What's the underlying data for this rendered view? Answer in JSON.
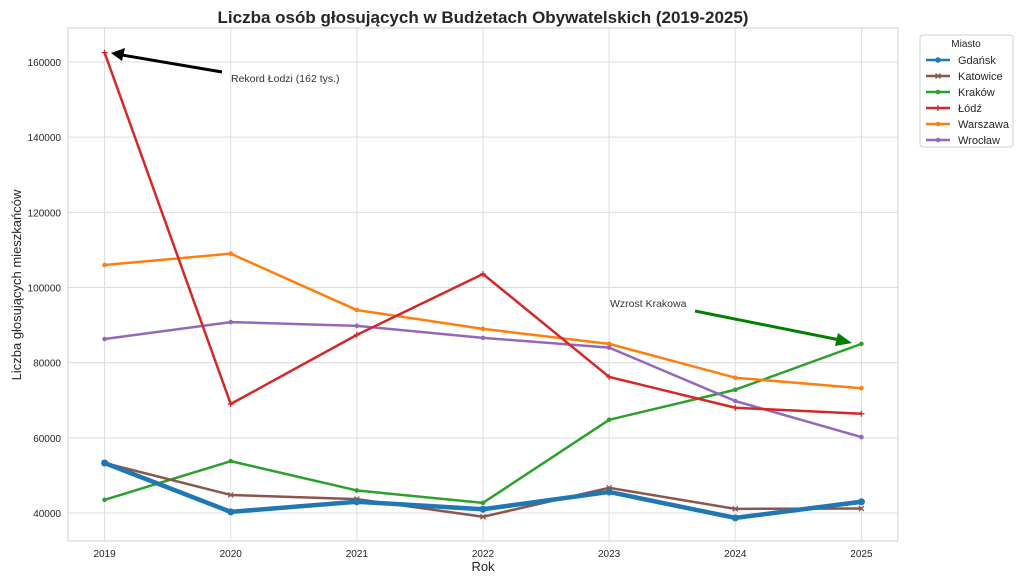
{
  "chart_data": {
    "type": "line",
    "title": "Liczba osób głosujących w Budżetach Obywatelskich (2019-2025)",
    "xlabel": "Rok",
    "ylabel": "Liczba głosujących mieszkańców",
    "x": [
      2019,
      2020,
      2021,
      2022,
      2023,
      2024,
      2025
    ],
    "x_tick_labels": [
      "2019",
      "2020",
      "2021",
      "2022",
      "2023",
      "2024",
      "2025"
    ],
    "y_ticks": [
      40000,
      60000,
      80000,
      100000,
      120000,
      140000,
      160000
    ],
    "y_tick_labels": [
      "40000",
      "60000",
      "80000",
      "100000",
      "120000",
      "140000",
      "160000"
    ],
    "xlim": [
      2018.71,
      2025.29
    ],
    "ylim": [
      32550,
      169050
    ],
    "grid": true,
    "legend": {
      "title": "Miasto",
      "placement": "outside-top-right"
    },
    "series": [
      {
        "name": "Gdańsk",
        "color": "#1f77b4",
        "marker": "circle",
        "values": [
          53300,
          40300,
          43000,
          41000,
          45600,
          38700,
          43000
        ]
      },
      {
        "name": "Katowice",
        "color": "#8c564b",
        "marker": "x",
        "values": [
          53300,
          44800,
          43700,
          39000,
          46700,
          41100,
          41200
        ]
      },
      {
        "name": "Kraków",
        "color": "#2ca02c",
        "marker": "dot",
        "values": [
          43500,
          53800,
          46000,
          42700,
          64800,
          72800,
          85000
        ]
      },
      {
        "name": "Łódź",
        "color": "#d62728",
        "marker": "plus",
        "values": [
          162500,
          69000,
          87400,
          103600,
          76200,
          68000,
          66400
        ]
      },
      {
        "name": "Warszawa",
        "color": "#ff7f0e",
        "marker": "dot",
        "values": [
          106000,
          109000,
          94000,
          89000,
          85000,
          76000,
          73200
        ]
      },
      {
        "name": "Wrocław",
        "color": "#9467bd",
        "marker": "dot",
        "values": [
          86300,
          90800,
          89800,
          86600,
          84000,
          69800,
          60200
        ]
      }
    ],
    "annotations": [
      {
        "text": "Rekord Łodzi (162 tys.)",
        "target": [
          2019,
          162500
        ],
        "text_at": [
          2020,
          157500
        ],
        "color": "#000000"
      },
      {
        "text": "Wzrost Krakowa",
        "target": [
          2025,
          85000
        ],
        "text_at": [
          2023,
          95500
        ],
        "color": "#008000"
      }
    ]
  }
}
